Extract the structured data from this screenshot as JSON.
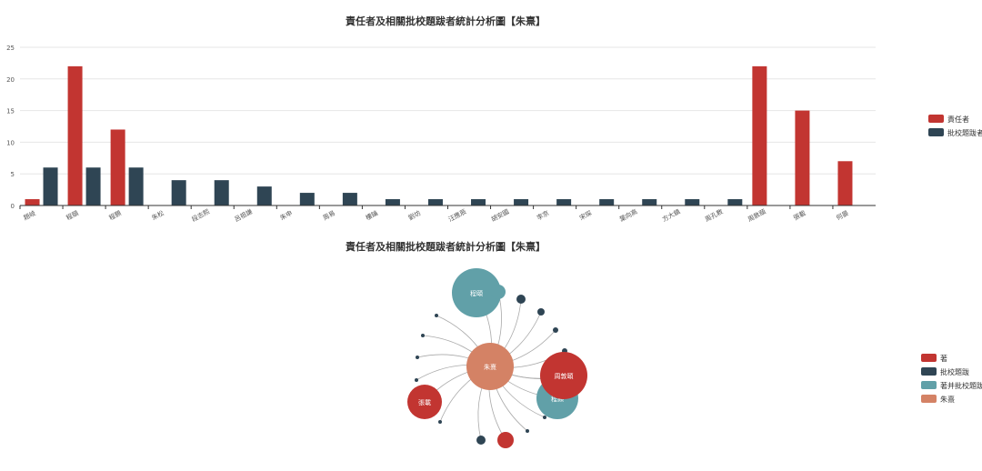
{
  "colors": {
    "red": "#c23531",
    "navy": "#2f4554",
    "teal": "#61a0a8",
    "salmon": "#d48265",
    "grid": "#e6e6e6",
    "axis": "#333333",
    "text": "#333333",
    "tick": "#555555",
    "link": "#aaaaaa"
  },
  "chart_data": [
    {
      "type": "bar",
      "title": "責任者及相關批校題跋者統計分析圖【朱熹】",
      "categories": [
        "趙岐",
        "程頤",
        "程顥",
        "朱松",
        "段志熙",
        "呂祖謙",
        "朱申",
        "周易",
        "樓鑰",
        "劉坊",
        "汪應辰",
        "胡安國",
        "李京",
        "宋琛",
        "葉向高",
        "方大鎮",
        "周孔教",
        "周敦頤",
        "張載",
        "何晏"
      ],
      "series": [
        {
          "name": "責任者",
          "values": [
            1,
            22,
            12,
            0,
            0,
            0,
            0,
            0,
            0,
            0,
            0,
            0,
            0,
            0,
            0,
            0,
            0,
            22,
            15,
            7
          ]
        },
        {
          "name": "批校題跋者",
          "values": [
            6,
            6,
            6,
            4,
            4,
            3,
            2,
            2,
            1,
            1,
            1,
            1,
            1,
            1,
            1,
            1,
            1,
            0,
            0,
            0
          ]
        }
      ],
      "ylim": [
        0,
        25
      ],
      "yticks": [
        0,
        5,
        10,
        15,
        20,
        25
      ],
      "legend_position": "right"
    },
    {
      "type": "graph",
      "title": "責任者及相關批校題跋者統計分析圖【朱熹】",
      "center": {
        "name": "朱熹",
        "category": "朱熹"
      },
      "categories": [
        "著",
        "批校題跋",
        "著并批校題跋",
        "朱熹"
      ],
      "nodes": [
        {
          "name": "程頤",
          "label": "程頤",
          "category": "著并批校題跋",
          "value": 28
        },
        {
          "name": "",
          "label": "",
          "category": "著并批校題跋",
          "value": 3
        },
        {
          "name": "",
          "label": "",
          "category": "批校題跋",
          "value": 2
        },
        {
          "name": "",
          "label": "",
          "category": "批校題跋",
          "value": 1
        },
        {
          "name": "",
          "label": "",
          "category": "批校題跋",
          "value": 1
        },
        {
          "name": "",
          "label": "",
          "category": "批校題跋",
          "value": 1
        },
        {
          "name": "",
          "label": "",
          "category": "批校題跋",
          "value": 1
        },
        {
          "name": "程顥",
          "label": "程顥",
          "category": "著并批校題跋",
          "value": 18
        },
        {
          "name": "周敦頤",
          "label": "周敦頤",
          "category": "著",
          "value": 22
        },
        {
          "name": "",
          "label": "",
          "category": "批校題跋",
          "value": 1
        },
        {
          "name": "",
          "label": "",
          "category": "批校題跋",
          "value": 1
        },
        {
          "name": "",
          "label": "",
          "category": "著",
          "value": 3
        },
        {
          "name": "",
          "label": "",
          "category": "批校題跋",
          "value": 2
        },
        {
          "name": "",
          "label": "",
          "category": "批校題跋",
          "value": 1
        },
        {
          "name": "張載",
          "label": "張載",
          "category": "著",
          "value": 15
        },
        {
          "name": "",
          "label": "",
          "category": "批校題跋",
          "value": 1
        },
        {
          "name": "",
          "label": "",
          "category": "批校題跋",
          "value": 1
        },
        {
          "name": "",
          "label": "",
          "category": "批校題跋",
          "value": 1
        },
        {
          "name": "",
          "label": "",
          "category": "批校題跋",
          "value": 1
        }
      ],
      "legend_position": "right"
    }
  ]
}
